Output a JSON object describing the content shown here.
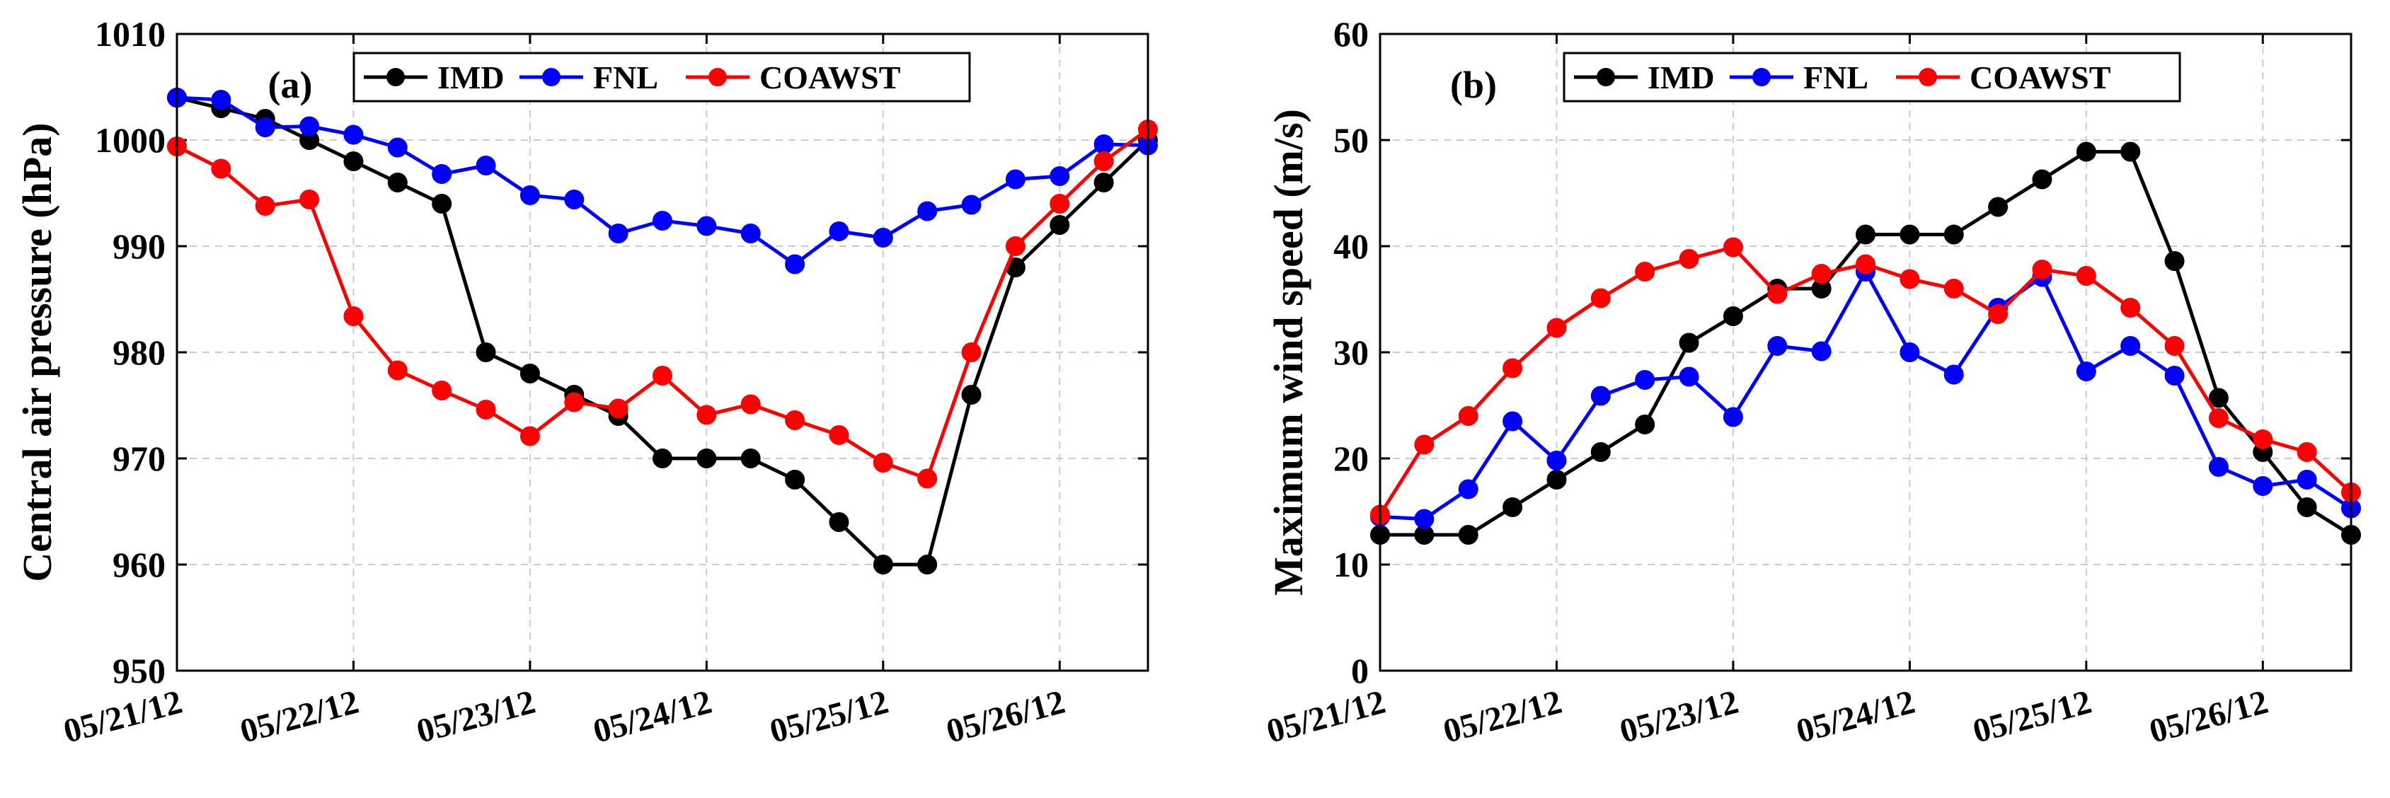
{
  "chart_data": [
    {
      "panel_label": "(a)",
      "type": "line",
      "title": "",
      "xlabel": "",
      "ylabel": "Central air pressure (hPa)",
      "ylim": [
        950,
        1010
      ],
      "yticks": [
        950,
        960,
        970,
        980,
        990,
        1000,
        1010
      ],
      "ytick_labels": [
        "950",
        "960",
        "970",
        "980",
        "990",
        "1000",
        "1010"
      ],
      "xlim": [
        0,
        22
      ],
      "xtick_positions": [
        0,
        4,
        8,
        12,
        16,
        20
      ],
      "xtick_labels": [
        "05/21/12",
        "05/22/12",
        "05/23/12",
        "05/24/12",
        "05/25/12",
        "05/26/12"
      ],
      "grid": true,
      "legend_position": "top",
      "series": [
        {
          "name": "IMD",
          "color": "#000000",
          "x": [
            0,
            1,
            2,
            3,
            4,
            5,
            6,
            7,
            8,
            9,
            10,
            11,
            12,
            13,
            14,
            15,
            16,
            17,
            18,
            19,
            20,
            21,
            22
          ],
          "values": [
            1004,
            1003,
            1002,
            1000,
            998,
            996,
            994,
            980,
            978,
            976,
            974,
            970,
            970,
            970,
            968,
            964,
            960,
            960,
            976,
            988,
            992,
            996,
            1000
          ]
        },
        {
          "name": "FNL",
          "color": "#0000ff",
          "x": [
            0,
            1,
            2,
            3,
            4,
            5,
            6,
            7,
            8,
            9,
            10,
            11,
            12,
            13,
            14,
            15,
            16,
            17,
            18,
            19,
            20,
            21,
            22
          ],
          "values": [
            1004,
            1003.8,
            1001.2,
            1001.3,
            1000.5,
            999.3,
            996.8,
            997.6,
            994.8,
            994.4,
            991.2,
            992.4,
            991.9,
            991.2,
            988.3,
            991.4,
            990.8,
            993.3,
            993.9,
            996.3,
            996.6,
            999.6,
            999.5
          ]
        },
        {
          "name": "COAWST",
          "color": "#ff0000",
          "x": [
            0,
            1,
            2,
            3,
            4,
            5,
            6,
            7,
            8,
            9,
            10,
            11,
            12,
            13,
            14,
            15,
            16,
            17,
            18,
            19,
            20,
            21,
            22
          ],
          "values": [
            999.4,
            997.3,
            993.8,
            994.4,
            983.4,
            978.3,
            976.4,
            974.6,
            972.1,
            975.3,
            974.7,
            977.8,
            974.1,
            975.1,
            973.6,
            972.2,
            969.6,
            968.1,
            980.0,
            990.0,
            994.0,
            998.0,
            1001.0
          ]
        }
      ]
    },
    {
      "panel_label": "(b)",
      "type": "line",
      "title": "",
      "xlabel": "",
      "ylabel": "Maximum wind speed (m/s)",
      "ylim": [
        0,
        60
      ],
      "yticks": [
        0,
        10,
        20,
        30,
        40,
        50,
        60
      ],
      "ytick_labels": [
        "0",
        "10",
        "20",
        "30",
        "40",
        "50",
        "60"
      ],
      "xlim": [
        0,
        22
      ],
      "xtick_positions": [
        0,
        4,
        8,
        12,
        16,
        20
      ],
      "xtick_labels": [
        "05/21/12",
        "05/22/12",
        "05/23/12",
        "05/24/12",
        "05/25/12",
        "05/26/12"
      ],
      "grid": true,
      "legend_position": "top",
      "series": [
        {
          "name": "IMD",
          "color": "#000000",
          "x": [
            0,
            1,
            2,
            3,
            4,
            5,
            6,
            7,
            8,
            9,
            10,
            11,
            12,
            13,
            14,
            15,
            16,
            17,
            18,
            19,
            20,
            21,
            22
          ],
          "values": [
            12.8,
            12.8,
            12.8,
            15.4,
            18.0,
            20.6,
            23.2,
            30.9,
            33.4,
            36.0,
            36.0,
            41.1,
            41.1,
            41.1,
            43.7,
            46.3,
            48.9,
            48.9,
            38.6,
            25.7,
            20.6,
            15.4,
            12.8
          ]
        },
        {
          "name": "FNL",
          "color": "#0000ff",
          "x": [
            0,
            1,
            2,
            3,
            4,
            5,
            6,
            7,
            8,
            9,
            10,
            11,
            12,
            13,
            14,
            15,
            16,
            17,
            18,
            19,
            20,
            21,
            22
          ],
          "values": [
            14.5,
            14.3,
            17.1,
            23.5,
            19.8,
            25.9,
            27.4,
            27.7,
            23.9,
            30.6,
            30.1,
            37.6,
            30.0,
            27.9,
            34.2,
            37.1,
            28.2,
            30.6,
            27.8,
            19.2,
            17.4,
            18.0,
            15.3
          ]
        },
        {
          "name": "COAWST",
          "color": "#ff0000",
          "x": [
            0,
            1,
            2,
            3,
            4,
            5,
            6,
            7,
            8,
            9,
            10,
            11,
            12,
            13,
            14,
            15,
            16,
            17,
            18,
            19,
            20,
            21,
            22
          ],
          "values": [
            14.7,
            21.3,
            24.0,
            28.5,
            32.3,
            35.1,
            37.6,
            38.8,
            39.9,
            35.5,
            37.4,
            38.3,
            36.9,
            36.0,
            33.6,
            37.8,
            37.2,
            34.2,
            30.6,
            23.8,
            21.8,
            20.6,
            16.8
          ]
        }
      ]
    }
  ]
}
